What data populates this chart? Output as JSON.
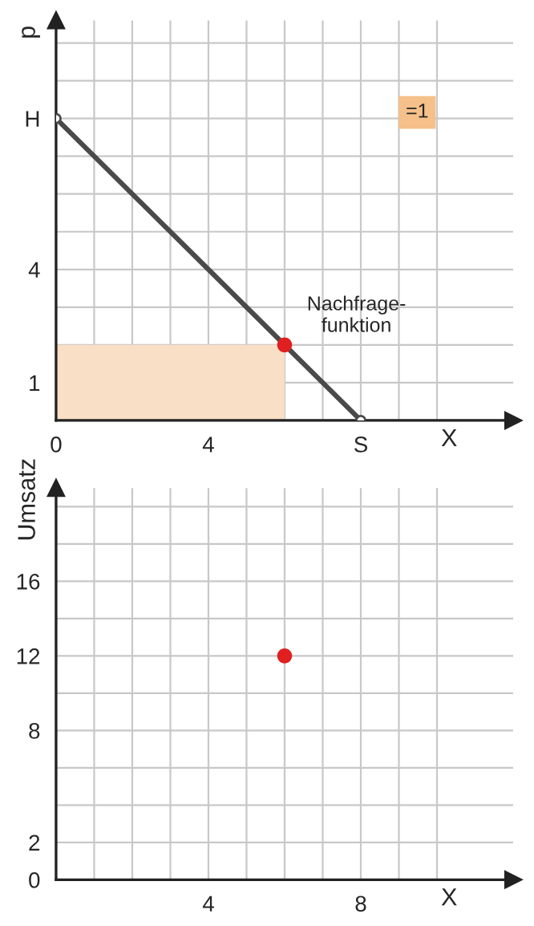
{
  "chart_data": [
    {
      "type": "line",
      "xlabel": "X",
      "ylabel": "p",
      "series": [
        {
          "type": "area",
          "x": [
            0,
            6
          ],
          "values": [
            2,
            2
          ],
          "color": "#f9dfc5"
        },
        {
          "type": "line",
          "name": "Nachfrage-\nfunktion",
          "x": [
            0,
            8
          ],
          "values": [
            8,
            0
          ],
          "color": "#4a4a4a",
          "marker": "circle"
        },
        {
          "type": "scatter",
          "x": [
            6
          ],
          "values": [
            2
          ],
          "color": "#e02020"
        }
      ],
      "annotations": [
        "=1"
      ],
      "xlim": [
        0,
        12
      ],
      "ylim": [
        0,
        10.6
      ],
      "xticks": [
        0,
        {
          "value": 1,
          "label": null
        },
        {
          "value": 2,
          "label": null
        },
        {
          "value": 3,
          "label": null
        },
        4,
        {
          "value": 5,
          "label": null
        },
        {
          "value": 6,
          "label": null
        },
        {
          "value": 7,
          "label": null
        },
        {
          "value": 8,
          "label": "S"
        },
        {
          "value": 9,
          "label": null
        },
        {
          "value": 10,
          "label": null
        }
      ],
      "yticks": [
        {
          "value": 0,
          "label": null
        },
        1,
        {
          "value": 2,
          "label": null
        },
        {
          "value": 3,
          "label": null
        },
        4,
        {
          "value": 5,
          "label": null
        },
        {
          "value": 6,
          "label": null
        },
        {
          "value": 7,
          "label": null
        },
        {
          "value": 8,
          "label": "H"
        },
        {
          "value": 9,
          "label": null
        },
        {
          "value": 10,
          "label": null
        }
      ],
      "grid": true
    },
    {
      "type": "scatter",
      "xlabel": "X",
      "ylabel": "Umsatz",
      "x": [
        6
      ],
      "values": [
        12
      ],
      "color": "#e02020",
      "xlim": [
        0,
        12
      ],
      "ylim": [
        0,
        21
      ],
      "xticks": [
        {
          "value": 0,
          "label": null
        },
        {
          "value": 1,
          "label": null
        },
        {
          "value": 2,
          "label": null
        },
        {
          "value": 3,
          "label": null
        },
        4,
        {
          "value": 5,
          "label": null
        },
        {
          "value": 6,
          "label": null
        },
        {
          "value": 7,
          "label": null
        },
        8,
        {
          "value": 9,
          "label": null
        },
        {
          "value": 10,
          "label": null
        }
      ],
      "yticks": [
        0,
        2,
        {
          "value": 4,
          "label": null
        },
        {
          "value": 6,
          "label": null
        },
        8,
        {
          "value": 10,
          "label": null
        },
        12,
        {
          "value": 14,
          "label": null
        },
        16,
        {
          "value": 18,
          "label": null
        },
        {
          "value": 20,
          "label": null
        }
      ],
      "grid": true
    }
  ]
}
